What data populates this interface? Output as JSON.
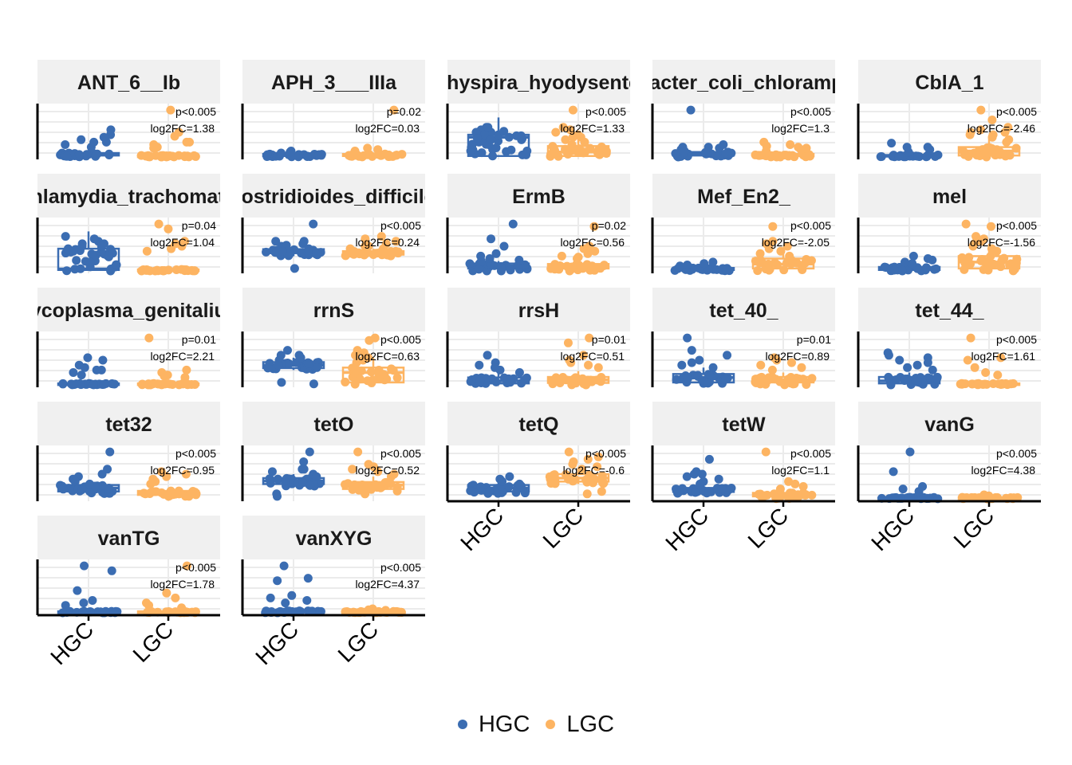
{
  "chart_data": {
    "type": "box-jitter facet grid",
    "facet_layout": "5 columns, strip title on top of each panel",
    "x": [
      "HGC",
      "LGC"
    ],
    "y_axis": "free scale, no tick labels shown",
    "grid": true,
    "legend_position": "bottom",
    "colors": {
      "HGC": "#3B6DB2",
      "LGC": "#FDB462"
    },
    "legend": [
      {
        "key": "HGC",
        "label": "HGC"
      },
      {
        "key": "LGC",
        "label": "LGC"
      }
    ],
    "panels": [
      {
        "title": "ANT_6__Ib",
        "pval": "p<0.005",
        "fc": "log2FC=1.38",
        "box": [
          [
            0.0,
            0.03,
            0.05,
            0.08,
            0.1
          ],
          [
            0.0,
            0.01,
            0.02,
            0.03,
            0.05
          ]
        ],
        "outliers": [
          [
            0.2,
            0.3,
            0.35,
            0.45,
            0.55,
            0.4,
            0.25,
            0.3
          ],
          [
            0.95,
            0.5,
            0.42,
            0.25,
            0.3,
            0.2,
            0.18,
            0.3
          ]
        ]
      },
      {
        "title": "APH_3___IIIa",
        "pval": "p=0.02",
        "fc": "log2FC=0.03",
        "box": [
          [
            0.0,
            0.02,
            0.04,
            0.06,
            0.08
          ],
          [
            0.0,
            0.02,
            0.04,
            0.06,
            0.08
          ]
        ],
        "outliers": [
          [
            0.12,
            0.1,
            0.08
          ],
          [
            0.95,
            0.15,
            0.12,
            0.18
          ]
        ]
      },
      {
        "title": "Brachyspira_hyodysenteriae",
        "pval": "p<0.005",
        "fc": "log2FC=1.33",
        "box": [
          [
            0.0,
            0.02,
            0.4,
            0.45,
            0.8
          ],
          [
            0.0,
            0.02,
            0.1,
            0.22,
            0.4
          ]
        ],
        "outliers": [
          [
            0.5,
            0.6,
            0.55,
            0.4,
            0.45,
            0.35,
            0.6,
            0.5,
            0.3,
            0.45,
            0.38,
            0.52
          ],
          [
            0.95,
            0.6,
            0.5,
            0.4,
            0.3,
            0.45,
            0.35,
            0.55,
            0.25,
            0.4
          ]
        ]
      },
      {
        "title": "Enterobacter_coli_chloramphenicol",
        "pval": "p<0.005",
        "fc": "log2FC=1.3",
        "box": [
          [
            0.0,
            0.03,
            0.06,
            0.1,
            0.14
          ],
          [
            0.0,
            0.02,
            0.04,
            0.06,
            0.1
          ]
        ],
        "outliers": [
          [
            0.95,
            0.2,
            0.15,
            0.2,
            0.18,
            0.12,
            0.25
          ],
          [
            0.3,
            0.2,
            0.15,
            0.22,
            0.18,
            0.12,
            0.25
          ]
        ]
      },
      {
        "title": "CblA_1",
        "pval": "p<0.005",
        "fc": "log2FC=-2.46",
        "box": [
          [
            0.0,
            0.01,
            0.02,
            0.04,
            0.06
          ],
          [
            0.0,
            0.03,
            0.12,
            0.2,
            0.4
          ]
        ],
        "outliers": [
          [
            0.28,
            0.2,
            0.15,
            0.1,
            0.2
          ],
          [
            0.95,
            0.75,
            0.5,
            0.4,
            0.45,
            0.55,
            0.35,
            0.6,
            0.45,
            0.3,
            0.5
          ]
        ]
      },
      {
        "title": "Chlamydia_trachomatis",
        "pval": "p=0.04",
        "fc": "log2FC=1.04",
        "box": [
          [
            0.0,
            0.02,
            0.04,
            0.45,
            0.8
          ],
          [
            0.0,
            0.01,
            0.02,
            0.03,
            0.05
          ]
        ],
        "outliers": [
          [
            0.7,
            0.6,
            0.55,
            0.5,
            0.45,
            0.65,
            0.4,
            0.5,
            0.55
          ],
          [
            0.95,
            0.85,
            0.6,
            0.55,
            0.45,
            0.5,
            0.4
          ]
        ]
      },
      {
        "title": "Clostridioides_difficile_",
        "pval": "p<0.005",
        "fc": "log2FC=0.24",
        "box": [
          [
            0.3,
            0.36,
            0.4,
            0.44,
            0.5
          ],
          [
            0.3,
            0.33,
            0.36,
            0.4,
            0.45
          ]
        ],
        "outliers": [
          [
            0.95,
            0.05,
            0.6,
            0.5,
            0.55,
            0.35,
            0.45,
            0.52,
            0.6,
            0.4
          ],
          [
            0.7,
            0.55,
            0.5,
            0.45,
            0.4,
            0.35,
            0.6,
            0.65,
            0.5,
            0.45
          ]
        ]
      },
      {
        "title": "ErmB",
        "pval": "p=0.02",
        "fc": "log2FC=0.56",
        "box": [
          [
            0.0,
            0.05,
            0.1,
            0.15,
            0.2
          ],
          [
            0.0,
            0.05,
            0.1,
            0.14,
            0.18
          ]
        ],
        "outliers": [
          [
            0.95,
            0.65,
            0.5,
            0.3,
            0.25,
            0.2,
            0.35,
            0.22
          ],
          [
            0.9,
            0.5,
            0.4,
            0.35,
            0.3,
            0.25,
            0.45,
            0.28
          ]
        ]
      },
      {
        "title": "Mef_En2_",
        "pval": "p<0.005",
        "fc": "log2FC=-2.05",
        "box": [
          [
            0.0,
            0.02,
            0.04,
            0.06,
            0.1
          ],
          [
            0.0,
            0.05,
            0.14,
            0.25,
            0.45
          ]
        ],
        "outliers": [
          [
            0.18,
            0.12,
            0.15,
            0.1
          ],
          [
            0.9,
            0.6,
            0.55,
            0.45,
            0.5,
            0.4,
            0.35,
            0.3
          ]
        ]
      },
      {
        "title": "mel",
        "pval": "p<0.005",
        "fc": "log2FC=-1.56",
        "box": [
          [
            0.0,
            0.02,
            0.05,
            0.08,
            0.15
          ],
          [
            0.0,
            0.05,
            0.18,
            0.3,
            0.55
          ]
        ],
        "outliers": [
          [
            0.3,
            0.22,
            0.18,
            0.25,
            0.15
          ],
          [
            0.95,
            0.9,
            0.7,
            0.6,
            0.5,
            0.55,
            0.45,
            0.4,
            0.65
          ]
        ]
      },
      {
        "title": "Mycoplasma_genitalium",
        "pval": "p=0.01",
        "fc": "log2FC=2.21",
        "box": [
          [
            0.0,
            0.01,
            0.02,
            0.03,
            0.05
          ],
          [
            0.0,
            0.01,
            0.02,
            0.03,
            0.05
          ]
        ],
        "outliers": [
          [
            0.55,
            0.5,
            0.4,
            0.3,
            0.25,
            0.35,
            0.2,
            0.3
          ],
          [
            0.95,
            0.3,
            0.25,
            0.2,
            0.18,
            0.15
          ]
        ]
      },
      {
        "title": "rrnS",
        "pval": "p<0.005",
        "fc": "log2FC=0.63",
        "box": [
          [
            0.3,
            0.34,
            0.4,
            0.46,
            0.55
          ],
          [
            0.0,
            0.05,
            0.25,
            0.35,
            0.55
          ]
        ],
        "outliers": [
          [
            0.7,
            0.6,
            0.5,
            0.55,
            0.45,
            0.4,
            0.35,
            0.05,
            0.02,
            0.6
          ],
          [
            0.95,
            0.9,
            0.7,
            0.65,
            0.5,
            0.55,
            0.45,
            0.6
          ]
        ]
      },
      {
        "title": "rrsH",
        "pval": "p=0.01",
        "fc": "log2FC=0.51",
        "box": [
          [
            0.0,
            0.03,
            0.08,
            0.15,
            0.25
          ],
          [
            0.0,
            0.04,
            0.1,
            0.16,
            0.28
          ]
        ],
        "outliers": [
          [
            0.6,
            0.45,
            0.4,
            0.3,
            0.35,
            0.25
          ],
          [
            0.95,
            0.85,
            0.6,
            0.5,
            0.4,
            0.45,
            0.35
          ]
        ]
      },
      {
        "title": "tet_40_",
        "pval": "p=0.01",
        "fc": "log2FC=0.89",
        "box": [
          [
            0.0,
            0.05,
            0.15,
            0.22,
            0.35
          ],
          [
            0.0,
            0.05,
            0.1,
            0.16,
            0.25
          ]
        ],
        "outliers": [
          [
            0.95,
            0.7,
            0.6,
            0.5,
            0.4,
            0.35,
            0.45
          ],
          [
            0.55,
            0.5,
            0.4,
            0.35,
            0.3,
            0.45
          ]
        ]
      },
      {
        "title": "tet_44_",
        "pval": "p<0.005",
        "fc": "log2FC=1.61",
        "box": [
          [
            0.0,
            0.03,
            0.08,
            0.16,
            0.25
          ],
          [
            0.0,
            0.01,
            0.02,
            0.03,
            0.05
          ]
        ],
        "outliers": [
          [
            0.65,
            0.6,
            0.55,
            0.5,
            0.4,
            0.35,
            0.45,
            0.3
          ],
          [
            0.95,
            0.55,
            0.5,
            0.35,
            0.25,
            0.2
          ]
        ]
      },
      {
        "title": "tet32",
        "pval": "p<0.005",
        "fc": "log2FC=0.95",
        "box": [
          [
            0.1,
            0.15,
            0.22,
            0.28,
            0.35
          ],
          [
            0.05,
            0.08,
            0.12,
            0.16,
            0.2
          ]
        ],
        "outliers": [
          [
            0.95,
            0.6,
            0.5,
            0.4,
            0.45,
            0.35,
            0.3
          ],
          [
            0.55,
            0.5,
            0.45,
            0.35,
            0.3,
            0.4
          ]
        ]
      },
      {
        "title": "tetO",
        "pval": "p<0.005",
        "fc": "log2FC=0.52",
        "box": [
          [
            0.25,
            0.3,
            0.36,
            0.42,
            0.5
          ],
          [
            0.15,
            0.2,
            0.28,
            0.34,
            0.45
          ]
        ],
        "outliers": [
          [
            0.95,
            0.75,
            0.6,
            0.55,
            0.5,
            0.45,
            0.05,
            0.1,
            0.6
          ],
          [
            0.95,
            0.7,
            0.6,
            0.5,
            0.55,
            0.45,
            0.65,
            0.1
          ]
        ]
      },
      {
        "title": "tetQ",
        "pval": "p<0.005",
        "fc": "log2FC=-0.6",
        "box": [
          [
            0.1,
            0.15,
            0.22,
            0.28,
            0.35
          ],
          [
            0.3,
            0.35,
            0.42,
            0.5,
            0.6
          ]
        ],
        "outliers": [
          [
            0.45,
            0.4,
            0.35,
            0.3
          ],
          [
            0.95,
            0.85,
            0.8,
            0.75,
            0.7,
            0.65,
            0.6,
            0.15,
            0.1
          ]
        ]
      },
      {
        "title": "tetW",
        "pval": "p<0.005",
        "fc": "log2FC=1.1",
        "box": [
          [
            0.1,
            0.14,
            0.18,
            0.22,
            0.3
          ],
          [
            0.0,
            0.05,
            0.08,
            0.12,
            0.18
          ]
        ],
        "outliers": [
          [
            0.8,
            0.55,
            0.5,
            0.4,
            0.45,
            0.35,
            0.3,
            0.5
          ],
          [
            0.95,
            0.35,
            0.3,
            0.25,
            0.2
          ]
        ]
      },
      {
        "title": "vanG",
        "pval": "p<0.005",
        "fc": "log2FC=4.38",
        "box": [
          [
            0.0,
            0.01,
            0.02,
            0.03,
            0.04
          ],
          [
            0.0,
            0.01,
            0.02,
            0.03,
            0.04
          ]
        ],
        "outliers": [
          [
            0.95,
            0.55,
            0.2,
            0.15,
            0.25
          ],
          [
            0.08,
            0.06,
            0.05
          ]
        ]
      },
      {
        "title": "vanTG",
        "pval": "p<0.005",
        "fc": "log2FC=1.78",
        "box": [
          [
            0.0,
            0.01,
            0.02,
            0.03,
            0.05
          ],
          [
            0.0,
            0.01,
            0.02,
            0.03,
            0.05
          ]
        ],
        "outliers": [
          [
            0.95,
            0.85,
            0.45,
            0.25,
            0.2,
            0.15
          ],
          [
            0.95,
            0.4,
            0.3,
            0.2,
            0.15,
            0.1
          ]
        ]
      },
      {
        "title": "vanXYG",
        "pval": "p<0.005",
        "fc": "log2FC=4.37",
        "box": [
          [
            0.0,
            0.01,
            0.02,
            0.04,
            0.06
          ],
          [
            0.0,
            0.01,
            0.02,
            0.03,
            0.04
          ]
        ],
        "outliers": [
          [
            0.95,
            0.7,
            0.65,
            0.35,
            0.3,
            0.25,
            0.2
          ],
          [
            0.08,
            0.06,
            0.05
          ]
        ]
      }
    ]
  }
}
